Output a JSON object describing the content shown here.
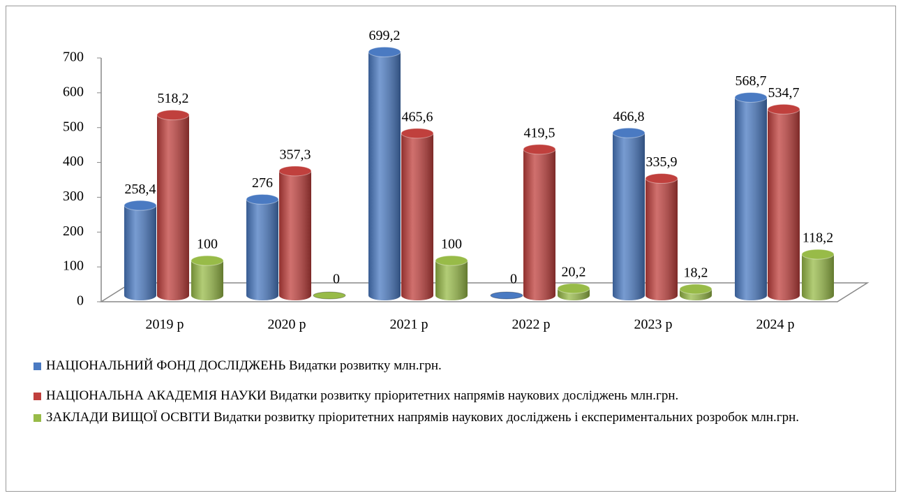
{
  "chart_data": {
    "type": "bar3d",
    "categories": [
      "2019 р",
      "2020 р",
      "2021 р",
      "2022 р",
      "2023 р",
      "2024 р"
    ],
    "ylim": [
      0,
      700
    ],
    "yticks": [
      0,
      100,
      200,
      300,
      400,
      500,
      600,
      700
    ],
    "series": [
      {
        "name": "НАЦІОНАЛЬНИЙ  ФОНД ДОСЛІДЖЕНЬ Видатки розвитку млн.грн.",
        "color": "#4a7ac2",
        "values": [
          258.4,
          276,
          699.2,
          0,
          466.8,
          568.7
        ],
        "value_labels": [
          "258,4",
          "276",
          "699,2",
          "0",
          "466,8",
          "568,7"
        ]
      },
      {
        "name": "НАЦІОНАЛЬНА  АКАДЕМІЯ НАУКИ Видатки розвитку пріоритетних напрямів наукових досліджень млн.грн.",
        "color": "#c0403d",
        "values": [
          518.2,
          357.3,
          465.6,
          419.5,
          335.9,
          534.7
        ],
        "value_labels": [
          "518,2",
          "357,3",
          "465,6",
          "419,5",
          "335,9",
          "534,7"
        ]
      },
      {
        "name": "ЗАКЛАДИ ВИЩОЇ ОСВІТИ Видатки розвитку пріоритетних напрямів наукових досліджень і експериментальних  розробок млн.грн.",
        "color": "#98bb48",
        "values": [
          100,
          0,
          100,
          20.2,
          18.2,
          118.2
        ],
        "value_labels": [
          "100",
          "0",
          "100",
          "20,2",
          "18,2",
          "118,2"
        ]
      }
    ]
  }
}
